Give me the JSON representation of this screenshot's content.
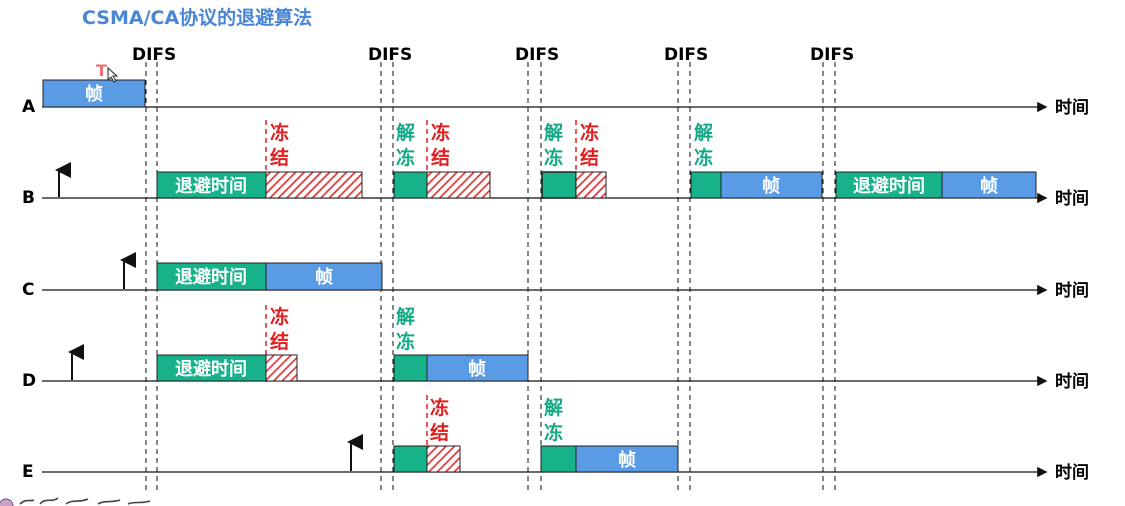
{
  "title": "CSMA/CA协议的退避算法",
  "difs_label": "DIFS",
  "time_label": "时间",
  "frame_label": "帧",
  "backoff_label": "退避时间",
  "freeze": [
    "冻",
    "结"
  ],
  "unfreeze": [
    "解",
    "冻"
  ],
  "cursor_mark": "T",
  "rows": [
    {
      "name": "A"
    },
    {
      "name": "B"
    },
    {
      "name": "C"
    },
    {
      "name": "D"
    },
    {
      "name": "E"
    }
  ],
  "colors": {
    "title": "#4a86d6",
    "frame_fill": "#5a9be6",
    "backoff_fill": "#17b18a",
    "freeze_fill": "#e03b3b",
    "freeze_text": "#e02020",
    "unfreeze_text": "#14a987",
    "cursor": "#e87070"
  }
}
